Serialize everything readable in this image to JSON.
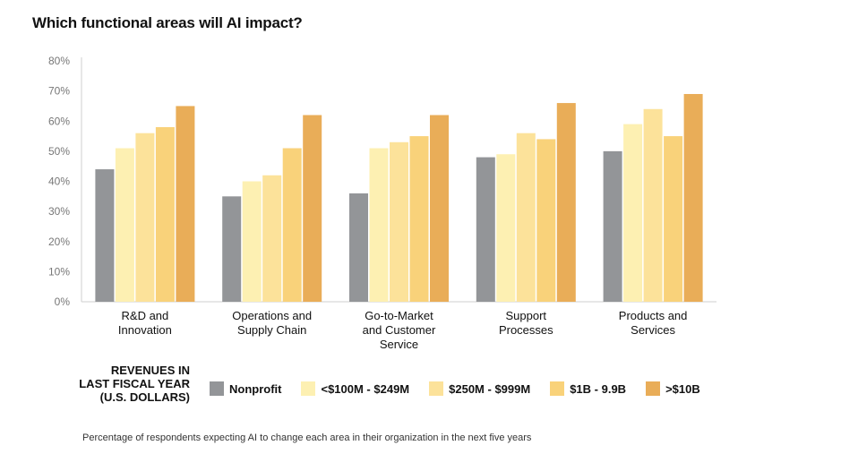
{
  "chart_data": {
    "type": "bar",
    "title": "Which functional areas will AI impact?",
    "categories": [
      [
        "R&D and",
        "Innovation"
      ],
      [
        "Operations and",
        "Supply Chain"
      ],
      [
        "Go-to-Market",
        "and Customer",
        "Service"
      ],
      [
        "Support",
        "Processes"
      ],
      [
        "Products and",
        "Services"
      ]
    ],
    "series": [
      {
        "name": "Nonprofit",
        "color": "#939598",
        "values": [
          44,
          35,
          36,
          48,
          50
        ]
      },
      {
        "name": "<$100M - $249M",
        "color": "#fdf0b2",
        "values": [
          51,
          40,
          51,
          49,
          59
        ]
      },
      {
        "name": "$250M - $999M",
        "color": "#fce29a",
        "values": [
          56,
          42,
          53,
          56,
          64
        ]
      },
      {
        "name": "$1B - 9.9B",
        "color": "#f9d27a",
        "values": [
          58,
          51,
          55,
          54,
          55
        ]
      },
      {
        "name": ">$10B",
        "color": "#e9ad58",
        "values": [
          65,
          62,
          62,
          66,
          69
        ]
      }
    ],
    "ylim": [
      0,
      80
    ],
    "yticks": [
      "0%",
      "10%",
      "20%",
      "30%",
      "40%",
      "50%",
      "60%",
      "70%",
      "80%"
    ],
    "ylabel": "",
    "xlabel": "",
    "legend_title": [
      "REVENUES IN",
      "LAST FISCAL YEAR",
      "(U.S. DOLLARS)"
    ],
    "legend_position": "bottom",
    "grid": false,
    "caption": "Percentage of respondents expecting AI to change each area in their organization in the next five years"
  }
}
